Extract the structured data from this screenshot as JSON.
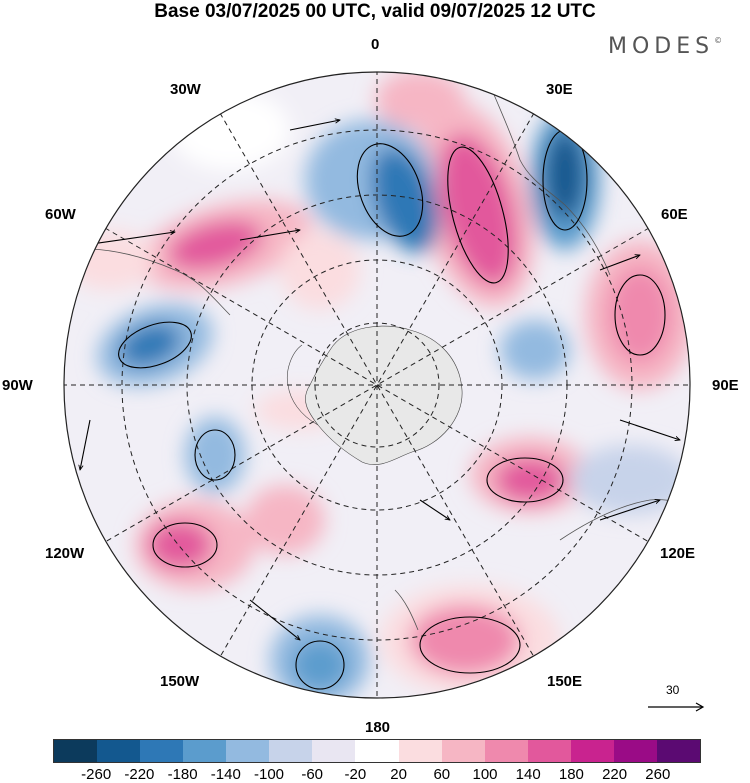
{
  "title": "Base 03/07/2025 00 UTC, valid 09/07/2025 12 UTC",
  "brand": "MODES",
  "brand_mark": "©",
  "longitude_labels": {
    "top": "0",
    "lon_30e": "30E",
    "lon_60e": "60E",
    "lon_90e": "90E",
    "lon_120e": "120E",
    "lon_150e": "150E",
    "bottom": "180",
    "lon_150w": "150W",
    "lon_120w": "120W",
    "lon_90w": "90W",
    "lon_60w": "60W",
    "lon_30w": "30W"
  },
  "reference_vector": "30",
  "colorbar": {
    "colors": [
      "#0c3a5c",
      "#13588f",
      "#2e78b6",
      "#5b9ccd",
      "#93bae0",
      "#c7d3ea",
      "#e9e6f2",
      "#ffffff",
      "#fbdde0",
      "#f6b6c4",
      "#ef89ad",
      "#e2589c",
      "#c9238f",
      "#9a0b86",
      "#5b0a72"
    ],
    "tick_labels": [
      "-260",
      "-220",
      "-180",
      "-140",
      "-100",
      "-60",
      "-20",
      "20",
      "60",
      "100",
      "140",
      "180",
      "220",
      "260"
    ]
  },
  "map": {
    "projection": "south-polar-stereographic",
    "antarctica_color": "#e8e8e8",
    "positive_color": "#e94d96",
    "negative_color": "#2d74b3"
  }
}
